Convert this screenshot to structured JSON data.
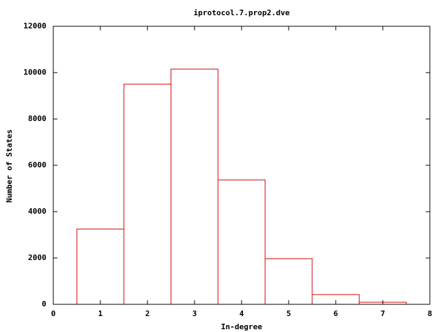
{
  "chart_data": {
    "type": "histogram",
    "title": "iprotocol.7.prop2.dve",
    "xlabel": "In-degree",
    "ylabel": "Number of States",
    "bins": [
      0.5,
      1.5,
      2.5,
      3.5,
      4.5,
      5.5,
      6.5,
      7.5
    ],
    "values": [
      3250,
      9500,
      10150,
      5370,
      1970,
      420,
      90
    ],
    "color": "#cc0000",
    "xlim": [
      0,
      8
    ],
    "xticks": [
      0,
      1,
      2,
      3,
      4,
      5,
      6,
      7,
      8
    ],
    "ylim": [
      0,
      12000
    ],
    "yticks": [
      0,
      2000,
      4000,
      6000,
      8000,
      10000,
      12000
    ]
  }
}
